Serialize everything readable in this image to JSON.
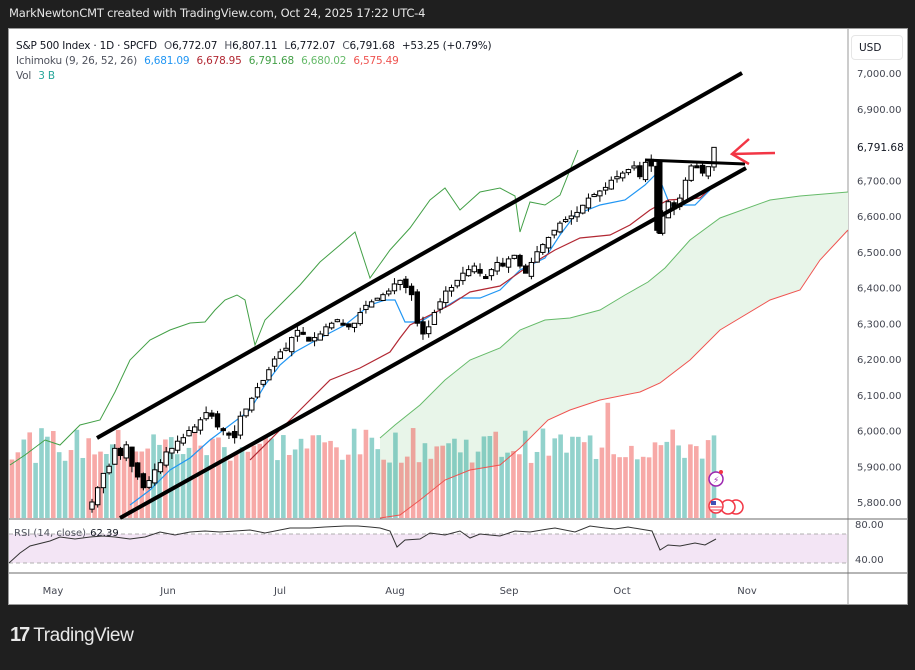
{
  "credit": "MarkNewtonCMT created with TradingView.com, Oct 24, 2025 17:22 UTC-4",
  "header": {
    "symbol": "S&P 500 Index · 1D · SPCFD",
    "open_label": "O",
    "open": "6,772.07",
    "high_label": "H",
    "high": "6,807.11",
    "low_label": "L",
    "low": "6,772.07",
    "close_label": "C",
    "close": "6,791.68",
    "change": "+53.25 (+0.79%)"
  },
  "ichimoku": {
    "label": "Ichimoku (9, 26, 52, 26)",
    "values": [
      {
        "v": "6,681.09",
        "color": "#2196f3"
      },
      {
        "v": "6,678.95",
        "color": "#b22833"
      },
      {
        "v": "6,791.68",
        "color": "#43a047"
      },
      {
        "v": "6,680.02",
        "color": "#66bb6a"
      },
      {
        "v": "6,575.49",
        "color": "#ef5350"
      }
    ]
  },
  "volume": {
    "label": "Vol",
    "value": "3 B",
    "color": "#26a69a"
  },
  "currency_button": "USD",
  "rsi": {
    "label": "RSI (14, close)",
    "value": "62.39",
    "upper": "80.00",
    "lower": "40.00"
  },
  "logo_mark": "17",
  "logo_text": "TradingView",
  "colors": {
    "up_volume": "#26a69a",
    "down_volume": "#ef5350",
    "tenkan": "#2196f3",
    "kijun": "#b22833",
    "chikou": "#43a047",
    "senkou_a": "#66bb6a",
    "senkou_b": "#ef5350",
    "cloud_fill": "#e8f5e9",
    "rsi_fill": "#f3e5f5",
    "arrow": "#f23645"
  },
  "chart_data": {
    "type": "candlestick",
    "title": "S&P 500 Index · 1D · SPCFD",
    "price_axis": {
      "ticks": [
        "7,000.00",
        "6,900.00",
        "6,791.68",
        "6,700.00",
        "6,600.00",
        "6,500.00",
        "6,400.00",
        "6,300.00",
        "6,200.00",
        "6,100.00",
        "6,000.00",
        "5,900.00",
        "5,800.00"
      ],
      "ylim": [
        5760,
        7080
      ],
      "last_price": "6,791.68"
    },
    "time_axis": [
      "May",
      "Jun",
      "Jul",
      "Aug",
      "Sep",
      "Oct",
      "Nov"
    ],
    "rsi_axis": [
      "80.00",
      "40.00"
    ],
    "closes_approx": [
      5800,
      5840,
      5880,
      5900,
      5950,
      5930,
      5960,
      5900,
      5870,
      5840,
      5860,
      5890,
      5910,
      5940,
      5950,
      5970,
      5980,
      6000,
      6010,
      6030,
      6050,
      6040,
      6010,
      6000,
      5990,
      5980,
      6040,
      6060,
      6090,
      6120,
      6140,
      6170,
      6200,
      6220,
      6230,
      6260,
      6280,
      6270,
      6250,
      6260,
      6270,
      6290,
      6300,
      6310,
      6300,
      6290,
      6300,
      6330,
      6350,
      6360,
      6370,
      6380,
      6390,
      6410,
      6420,
      6400,
      6380,
      6300,
      6270,
      6290,
      6330,
      6360,
      6390,
      6400,
      6420,
      6440,
      6450,
      6460,
      6440,
      6430,
      6450,
      6470,
      6460,
      6480,
      6490,
      6460,
      6440,
      6470,
      6500,
      6520,
      6540,
      6560,
      6580,
      6590,
      6600,
      6610,
      6630,
      6650,
      6660,
      6670,
      6680,
      6700,
      6710,
      6720,
      6730,
      6740,
      6710,
      6750,
      6740,
      6560,
      6600,
      6640,
      6620,
      6650,
      6700,
      6740,
      6740,
      6720,
      6738,
      6792
    ],
    "channel_lines": [
      {
        "name": "upper",
        "from": [
          "mid-May",
          5985
        ],
        "to": [
          "Nov",
          7000
        ]
      },
      {
        "name": "lower",
        "from": [
          "late-May",
          5770
        ],
        "to": [
          "Nov",
          6710
        ]
      },
      {
        "name": "resistance",
        "from": [
          "Oct",
          6750
        ],
        "to": [
          "late-Oct",
          6740
        ]
      }
    ],
    "annotations": [
      "red arrow pointing at breakout candle near 6,791.68"
    ],
    "indicators": [
      "Ichimoku (9, 26, 52, 26)",
      "Volume",
      "RSI (14, close)"
    ],
    "rsi_last": 62.39
  }
}
